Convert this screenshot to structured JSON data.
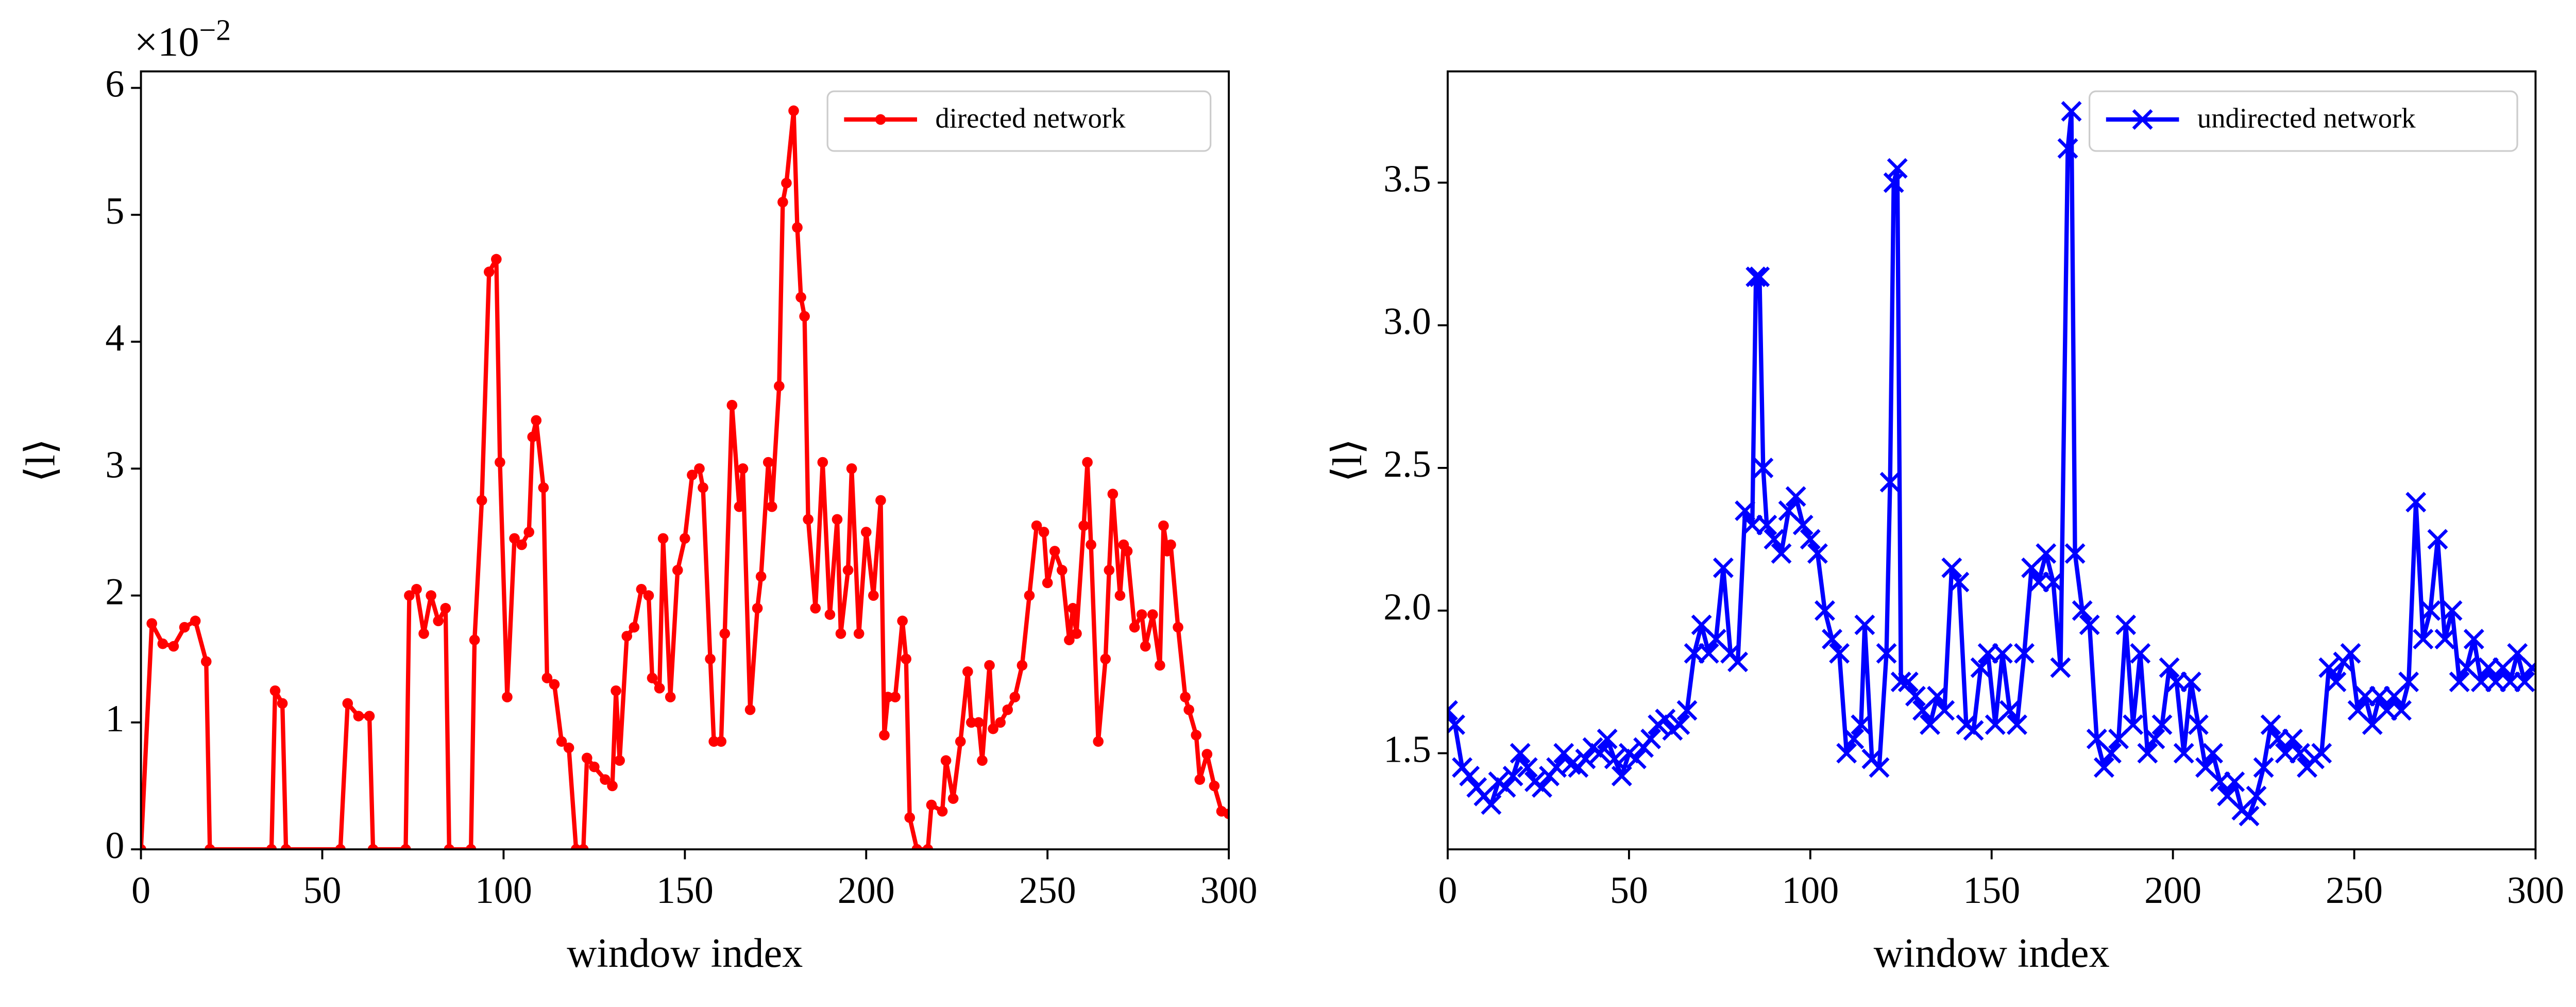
{
  "chart_data": [
    {
      "type": "line",
      "xlabel": "window index",
      "ylabel": "⟨l⟩",
      "offset_text": {
        "base": "×10",
        "exponent": "−2"
      },
      "xlim": [
        0,
        300
      ],
      "ylim": [
        0,
        6.13
      ],
      "xticks": [
        0,
        50,
        100,
        150,
        200,
        250,
        300
      ],
      "yticks": [
        0,
        1,
        2,
        3,
        4,
        5,
        6
      ],
      "legend": "upper right",
      "x": [
        0,
        3,
        6,
        9,
        12,
        15,
        18,
        19,
        36,
        37,
        39,
        40,
        55,
        57,
        60,
        63,
        64,
        73,
        74,
        76,
        78,
        80,
        82,
        84,
        85,
        91,
        92,
        94,
        96,
        98,
        99,
        101,
        103,
        105,
        107,
        108,
        109,
        111,
        112,
        114,
        116,
        118,
        120,
        122,
        123,
        125,
        128,
        130,
        131,
        132,
        134,
        136,
        138,
        140,
        141,
        143,
        144,
        146,
        148,
        150,
        152,
        154,
        155,
        157,
        158,
        160,
        161,
        163,
        165,
        166,
        168,
        170,
        171,
        173,
        174,
        176,
        177,
        178,
        180,
        181,
        182,
        183,
        184,
        186,
        188,
        190,
        192,
        193,
        195,
        196,
        198,
        200,
        202,
        204,
        205,
        206,
        208,
        210,
        211,
        212,
        214,
        217,
        218,
        221,
        222,
        224,
        226,
        228,
        229,
        231,
        232,
        234,
        235,
        237,
        239,
        241,
        243,
        245,
        247,
        249,
        250,
        252,
        254,
        256,
        257,
        258,
        260,
        261,
        262,
        264,
        266,
        267,
        268,
        270,
        271,
        272,
        274,
        276,
        277,
        279,
        281,
        282,
        283,
        284,
        286,
        288,
        289,
        291,
        292,
        294,
        296,
        298,
        300
      ],
      "series": [
        {
          "name": "directed network",
          "color": "#ff0000",
          "marker": "circle",
          "values": [
            0,
            1.78,
            1.62,
            1.6,
            1.75,
            1.8,
            1.48,
            0,
            0,
            1.25,
            1.15,
            0,
            0,
            1.15,
            1.05,
            1.05,
            0,
            0,
            2.0,
            2.05,
            1.7,
            2.0,
            1.8,
            1.9,
            0,
            0,
            1.65,
            2.75,
            4.55,
            4.65,
            3.05,
            1.2,
            2.45,
            2.4,
            2.5,
            3.25,
            3.38,
            2.85,
            1.35,
            1.3,
            0.85,
            0.8,
            0,
            0,
            0.72,
            0.65,
            0.55,
            0.5,
            1.25,
            0.7,
            1.68,
            1.75,
            2.05,
            2.0,
            1.35,
            1.27,
            2.45,
            1.2,
            2.2,
            2.45,
            2.95,
            3.0,
            2.85,
            1.5,
            0.85,
            0.85,
            1.7,
            3.5,
            2.7,
            3.0,
            1.1,
            1.9,
            2.15,
            3.05,
            2.7,
            3.65,
            5.1,
            5.25,
            5.82,
            4.9,
            4.35,
            4.2,
            2.6,
            1.9,
            3.05,
            1.85,
            2.6,
            1.7,
            2.2,
            3.0,
            1.7,
            2.5,
            2.0,
            2.75,
            0.9,
            1.2,
            1.2,
            1.8,
            1.5,
            0.25,
            0,
            0,
            0.35,
            0.3,
            0.7,
            0.4,
            0.85,
            1.4,
            1.0,
            1.0,
            0.7,
            1.45,
            0.95,
            1.0,
            1.1,
            1.2,
            1.45,
            2.0,
            2.55,
            2.5,
            2.1,
            2.35,
            2.2,
            1.65,
            1.9,
            1.7,
            2.55,
            3.05,
            2.4,
            0.85,
            1.5,
            2.2,
            2.8,
            2.0,
            2.4,
            2.35,
            1.75,
            1.85,
            1.6,
            1.85,
            1.45,
            2.55,
            2.35,
            2.4,
            1.75,
            1.2,
            1.1,
            0.9,
            0.55,
            0.75,
            0.5,
            0.3,
            0.28
          ]
        }
      ]
    },
    {
      "type": "line",
      "xlabel": "window index",
      "ylabel": "⟨l⟩",
      "xlim": [
        0,
        300
      ],
      "ylim": [
        1.163,
        3.89
      ],
      "xticks": [
        0,
        50,
        100,
        150,
        200,
        250,
        300
      ],
      "yticks": [
        1.5,
        {
          "value": 2,
          "label": "2.0"
        },
        2.5,
        {
          "value": 3,
          "label": "3.0"
        },
        3.5
      ],
      "legend": "upper right",
      "x": [
        0,
        2,
        4,
        6,
        8,
        10,
        12,
        14,
        16,
        18,
        20,
        22,
        24,
        26,
        28,
        30,
        32,
        34,
        36,
        38,
        40,
        42,
        44,
        46,
        48,
        50,
        52,
        54,
        56,
        58,
        60,
        62,
        64,
        66,
        68,
        70,
        72,
        74,
        76,
        78,
        80,
        82,
        84,
        85,
        86,
        87,
        88,
        90,
        92,
        94,
        96,
        98,
        100,
        102,
        104,
        106,
        108,
        110,
        112,
        114,
        115,
        117,
        119,
        121,
        122,
        123,
        124,
        125,
        127,
        129,
        131,
        133,
        135,
        137,
        139,
        141,
        143,
        145,
        147,
        149,
        151,
        153,
        155,
        157,
        159,
        161,
        163,
        165,
        167,
        169,
        171,
        172,
        173,
        175,
        177,
        179,
        181,
        183,
        185,
        187,
        189,
        191,
        193,
        195,
        197,
        199,
        201,
        203,
        205,
        207,
        209,
        211,
        213,
        215,
        217,
        219,
        221,
        223,
        225,
        227,
        229,
        231,
        233,
        235,
        237,
        239,
        241,
        243,
        245,
        247,
        249,
        251,
        253,
        255,
        257,
        259,
        261,
        263,
        265,
        267,
        269,
        271,
        273,
        275,
        277,
        279,
        281,
        283,
        285,
        287,
        289,
        291,
        293,
        295,
        297,
        299
      ],
      "series": [
        {
          "name": "undirected network",
          "color": "#0000ff",
          "marker": "x",
          "values": [
            1.65,
            1.6,
            1.45,
            1.42,
            1.38,
            1.35,
            1.32,
            1.4,
            1.38,
            1.42,
            1.5,
            1.45,
            1.4,
            1.38,
            1.42,
            1.45,
            1.5,
            1.46,
            1.45,
            1.48,
            1.52,
            1.5,
            1.55,
            1.48,
            1.42,
            1.5,
            1.48,
            1.52,
            1.55,
            1.6,
            1.62,
            1.58,
            1.6,
            1.65,
            1.85,
            1.95,
            1.85,
            1.9,
            2.15,
            1.85,
            1.82,
            2.35,
            2.3,
            3.17,
            3.17,
            2.5,
            2.3,
            2.25,
            2.2,
            2.35,
            2.4,
            2.3,
            2.25,
            2.2,
            2.0,
            1.9,
            1.85,
            1.5,
            1.55,
            1.6,
            1.95,
            1.48,
            1.45,
            1.85,
            2.45,
            3.5,
            3.55,
            1.75,
            1.75,
            1.7,
            1.65,
            1.6,
            1.7,
            1.65,
            2.15,
            2.1,
            1.6,
            1.58,
            1.8,
            1.85,
            1.6,
            1.85,
            1.65,
            1.6,
            1.85,
            2.15,
            2.1,
            2.2,
            2.1,
            1.8,
            3.62,
            3.75,
            2.2,
            2.0,
            1.95,
            1.55,
            1.45,
            1.5,
            1.55,
            1.95,
            1.6,
            1.85,
            1.5,
            1.55,
            1.6,
            1.8,
            1.75,
            1.5,
            1.75,
            1.6,
            1.45,
            1.5,
            1.4,
            1.35,
            1.4,
            1.3,
            1.28,
            1.35,
            1.45,
            1.6,
            1.55,
            1.5,
            1.55,
            1.5,
            1.45,
            1.48,
            1.5,
            1.8,
            1.75,
            1.82,
            1.85,
            1.65,
            1.7,
            1.6,
            1.7,
            1.65,
            1.7,
            1.65,
            1.75,
            2.38,
            1.9,
            2.0,
            2.25,
            1.9,
            2.0,
            1.75,
            1.8,
            1.9,
            1.75,
            1.8,
            1.75,
            1.8,
            1.75,
            1.85,
            1.75,
            1.8
          ]
        }
      ]
    }
  ]
}
